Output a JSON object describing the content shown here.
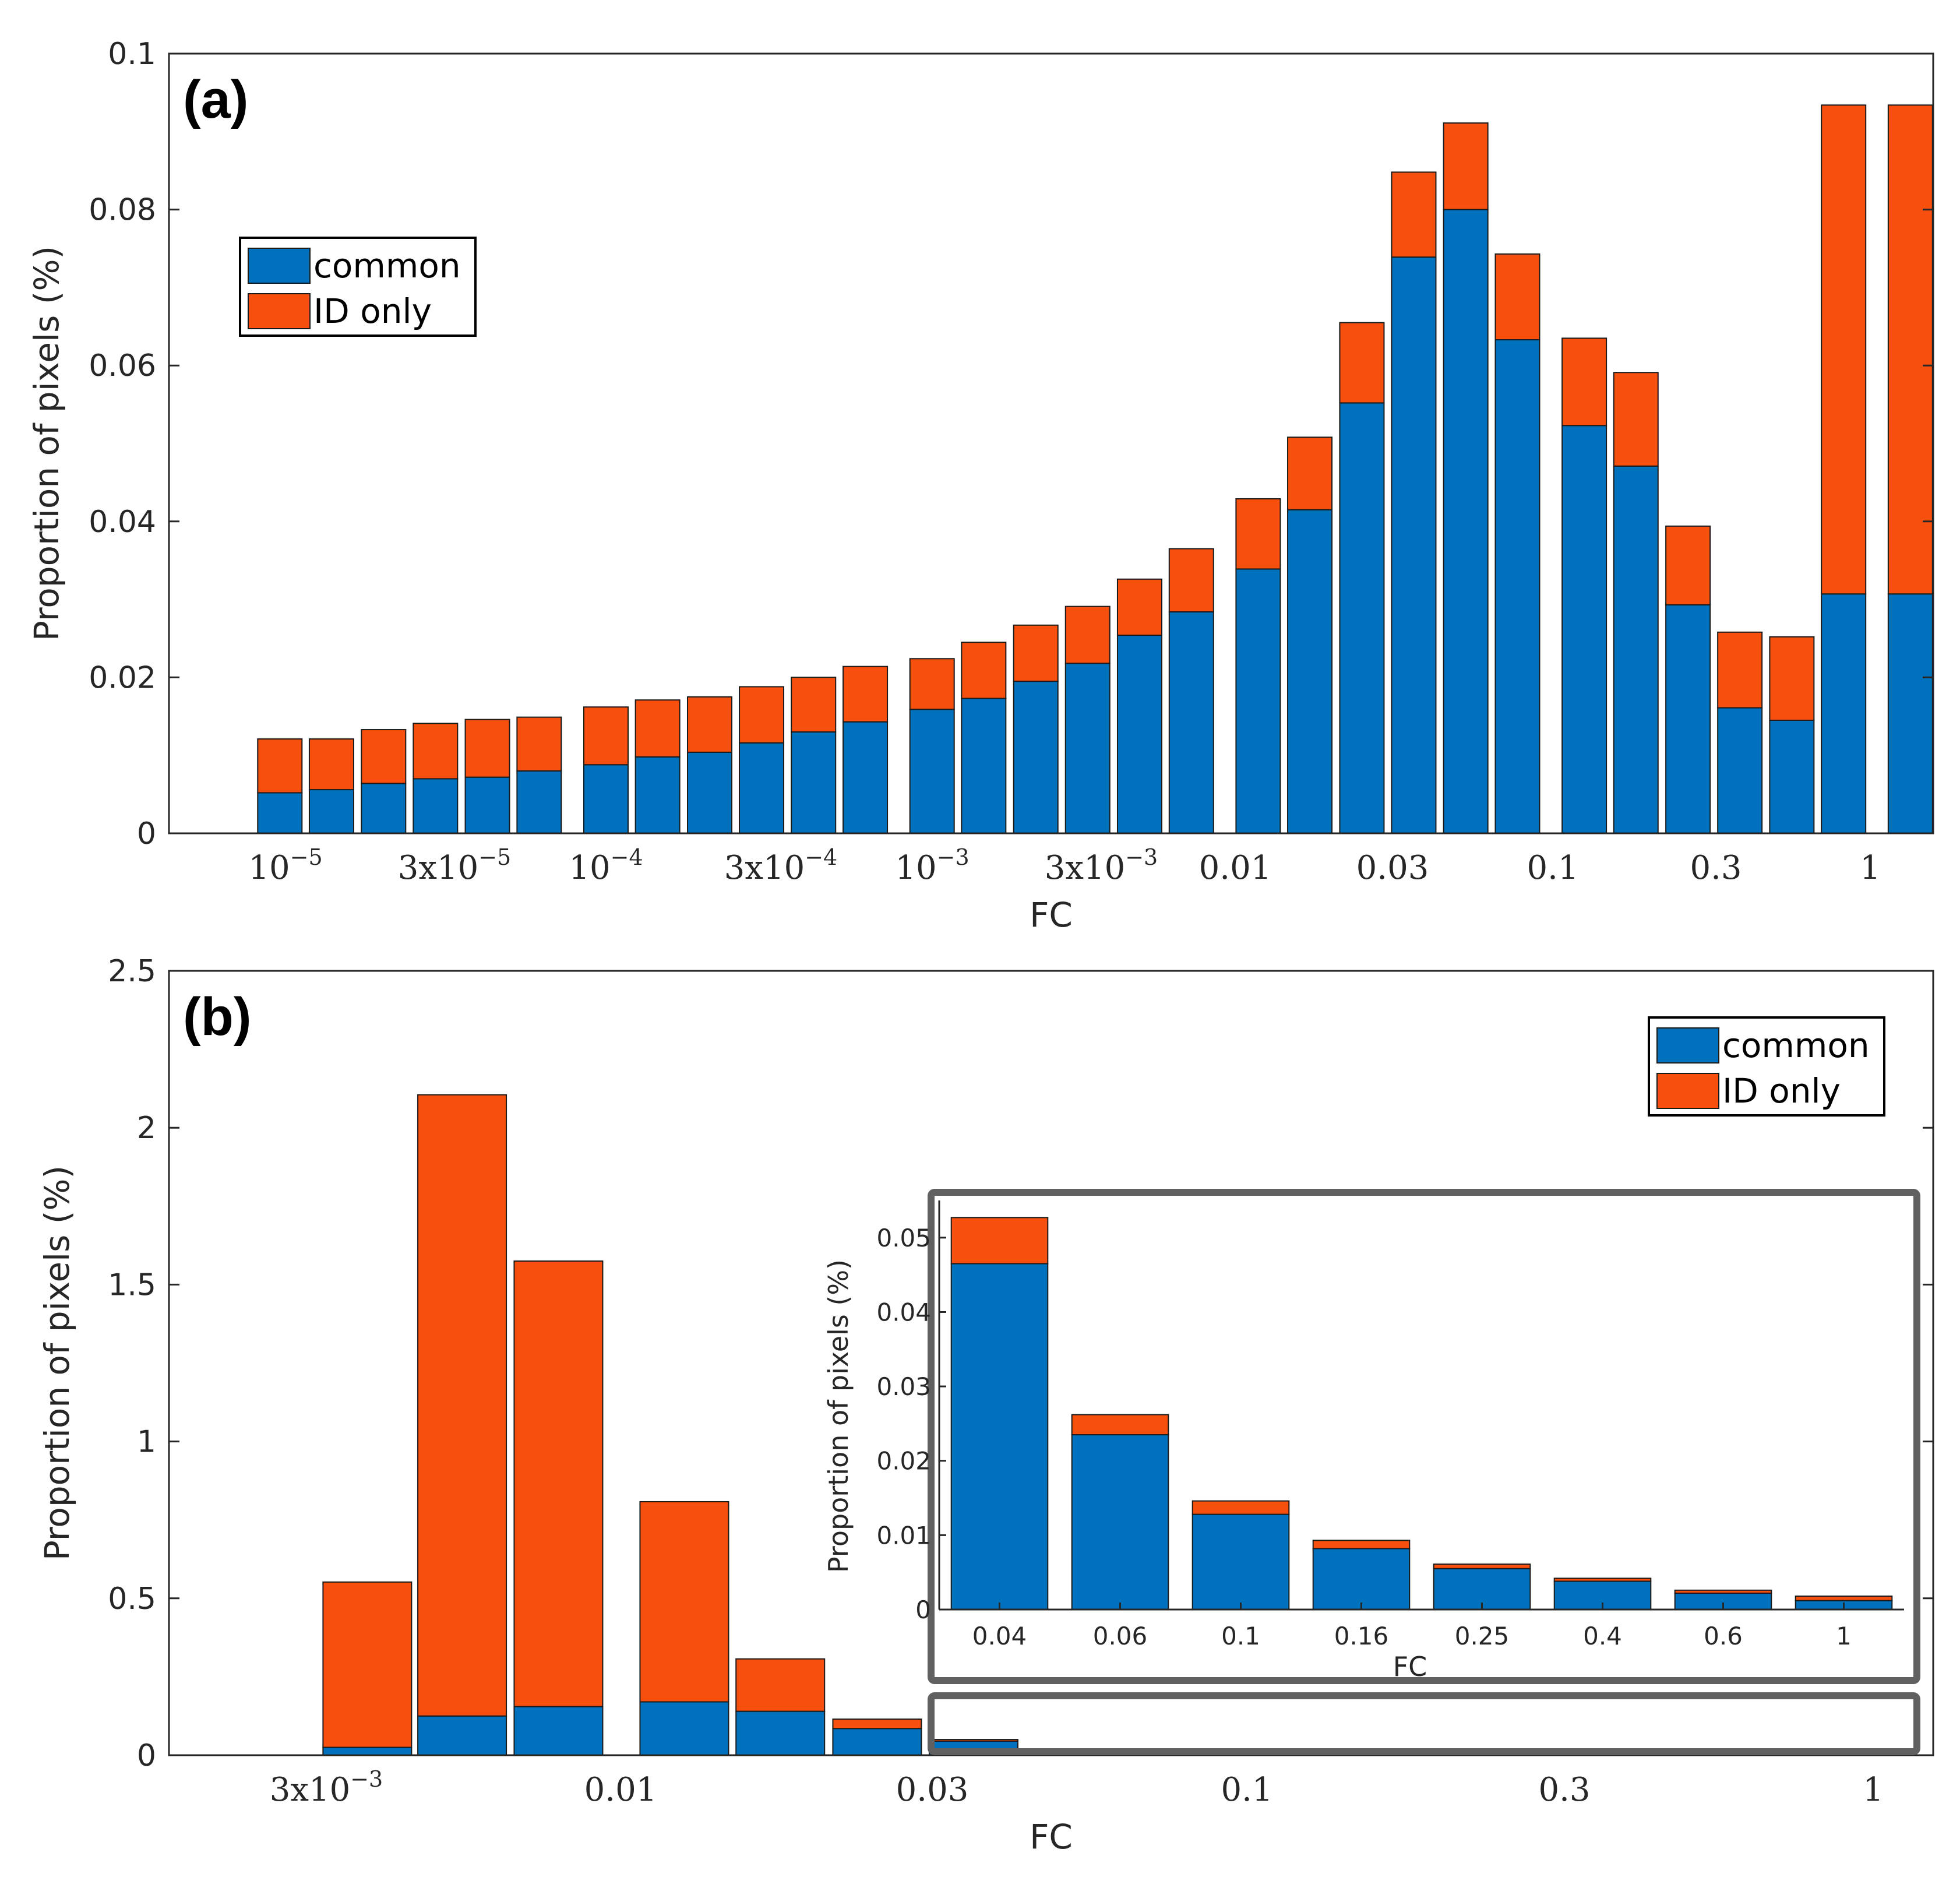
{
  "colors": {
    "common": "#0072BD",
    "id_only": "#F74F0E",
    "inset_frame": "#606060",
    "axis": "#262626"
  },
  "chart_data": [
    {
      "panel": "(a)",
      "type": "bar",
      "stacked": true,
      "x_scale": "log",
      "x": [
        1e-05,
        1.44e-05,
        2.08e-05,
        3e-05,
        4.33e-05,
        6.24e-05,
        0.0001,
        0.000144,
        0.000208,
        0.0003,
        0.000433,
        0.000624,
        0.001,
        0.00144,
        0.00208,
        0.003,
        0.00433,
        0.00624,
        0.01,
        0.0144,
        0.0208,
        0.03,
        0.0433,
        0.0624,
        0.1,
        0.144,
        0.208,
        0.3,
        0.433,
        0.624,
        1
      ],
      "series": [
        {
          "name": "common",
          "values": [
            0.0052,
            0.0056,
            0.0064,
            0.007,
            0.0072,
            0.008,
            0.0088,
            0.0098,
            0.0104,
            0.0116,
            0.013,
            0.0143,
            0.0159,
            0.0173,
            0.0195,
            0.0218,
            0.0254,
            0.0284,
            0.0339,
            0.0415,
            0.0552,
            0.0739,
            0.08,
            0.0633,
            0.0523,
            0.0471,
            0.0293,
            0.0161,
            0.0145,
            0.0307,
            0.0307
          ]
        },
        {
          "name": "ID only",
          "values": [
            0.0069,
            0.0065,
            0.0069,
            0.0071,
            0.0074,
            0.0069,
            0.0074,
            0.0073,
            0.0071,
            0.0072,
            0.007,
            0.0071,
            0.0065,
            0.0072,
            0.0072,
            0.0073,
            0.0072,
            0.0081,
            0.009,
            0.0093,
            0.0103,
            0.0109,
            0.0111,
            0.011,
            0.0112,
            0.012,
            0.0101,
            0.0097,
            0.0107,
            0.0627,
            0.0627
          ]
        }
      ],
      "xlabel": "FC",
      "ylabel": "Proportion of pixels (%)",
      "ylim": [
        0,
        0.1
      ],
      "yticks": [
        "0",
        "0.02",
        "0.04",
        "0.06",
        "0.08",
        "0.1"
      ],
      "xtick_labels": [
        {
          "base": "10",
          "exp": "−5"
        },
        {
          "base": "3x10",
          "exp": "−5"
        },
        {
          "base": "10",
          "exp": "−4"
        },
        {
          "base": "3x10",
          "exp": "−4"
        },
        {
          "base": "10",
          "exp": "−3"
        },
        {
          "base": "3x10",
          "exp": "−3"
        },
        {
          "base": "0.01",
          "exp": ""
        },
        {
          "base": "0.03",
          "exp": ""
        },
        {
          "base": "0.1",
          "exp": ""
        },
        {
          "base": "0.3",
          "exp": ""
        },
        {
          "base": "1",
          "exp": ""
        }
      ],
      "legend": {
        "entries": [
          "common",
          "ID only"
        ],
        "placement": "upper-left"
      }
    },
    {
      "panel": "(b)",
      "type": "bar",
      "stacked": true,
      "x_scale": "log",
      "x": [
        0.003,
        0.0043,
        0.0062,
        0.01,
        0.0144,
        0.0208,
        0.03,
        0.0433
      ],
      "series": [
        {
          "name": "common",
          "values": [
            0.025,
            0.125,
            0.155,
            0.17,
            0.14,
            0.085,
            0.045,
            0.015
          ]
        },
        {
          "name": "ID only",
          "values": [
            0.527,
            1.98,
            1.42,
            0.638,
            0.167,
            0.03,
            0.005,
            0.003
          ]
        }
      ],
      "xlabel": "FC",
      "ylabel": "Proportion of pixels (%)",
      "ylim": [
        0,
        2.5
      ],
      "yticks": [
        "0",
        "0.5",
        "1",
        "1.5",
        "2",
        "2.5"
      ],
      "xtick_labels": [
        {
          "base": "3x10",
          "exp": "−3"
        },
        {
          "base": "0.01",
          "exp": ""
        },
        {
          "base": "0.03",
          "exp": ""
        },
        {
          "base": "0.1",
          "exp": ""
        },
        {
          "base": "0.3",
          "exp": ""
        },
        {
          "base": "1",
          "exp": ""
        }
      ],
      "legend": {
        "entries": [
          "common",
          "ID only"
        ],
        "placement": "upper-right"
      }
    },
    {
      "panel": "(b) inset",
      "type": "bar",
      "stacked": true,
      "categories": [
        "0.04",
        "0.06",
        "0.1",
        "0.16",
        "0.25",
        "0.4",
        "0.6",
        "1"
      ],
      "series": [
        {
          "name": "common",
          "values": [
            0.0465,
            0.0235,
            0.0128,
            0.0082,
            0.0055,
            0.0038,
            0.0022,
            0.0012
          ]
        },
        {
          "name": "ID only",
          "values": [
            0.0062,
            0.0027,
            0.0018,
            0.0011,
            0.0006,
            0.0004,
            0.0004,
            0.0006
          ]
        }
      ],
      "xlabel": "FC",
      "ylabel": "Proportion of pixels (%)",
      "ylim": [
        0,
        0.055
      ],
      "yticks": [
        "0",
        "0.01",
        "0.02",
        "0.03",
        "0.04",
        "0.05"
      ]
    }
  ]
}
